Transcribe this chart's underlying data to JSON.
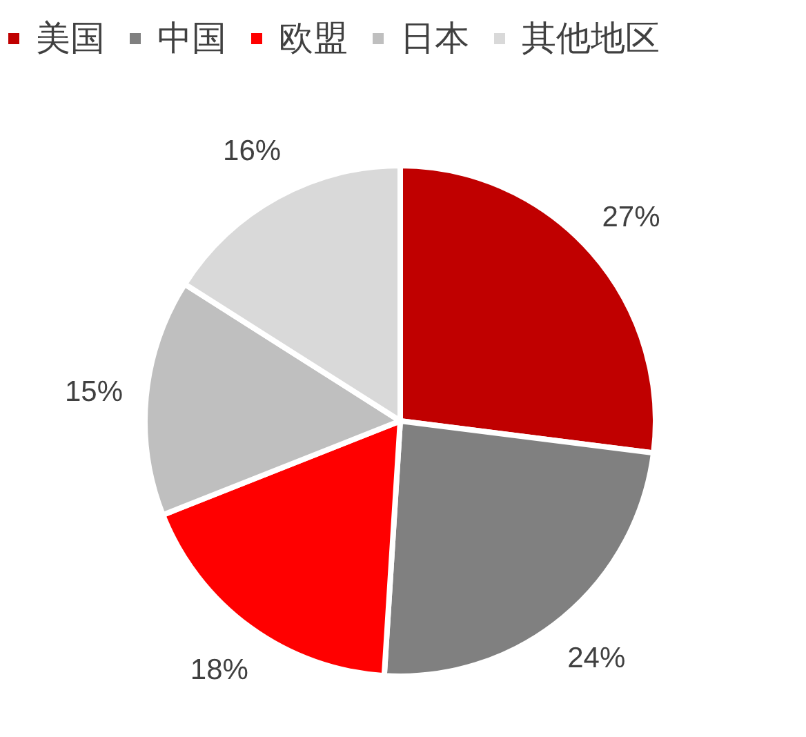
{
  "chart_data": {
    "type": "pie",
    "categories": [
      "美国",
      "中国",
      "欧盟",
      "日本",
      "其他地区"
    ],
    "values": [
      27,
      24,
      18,
      15,
      16
    ],
    "colors": [
      "#c00000",
      "#808080",
      "#ff0000",
      "#bfbfbf",
      "#d9d9d9"
    ],
    "legend": "top",
    "value_labels": [
      "27%",
      "24%",
      "18%",
      "15%",
      "16%"
    ]
  }
}
